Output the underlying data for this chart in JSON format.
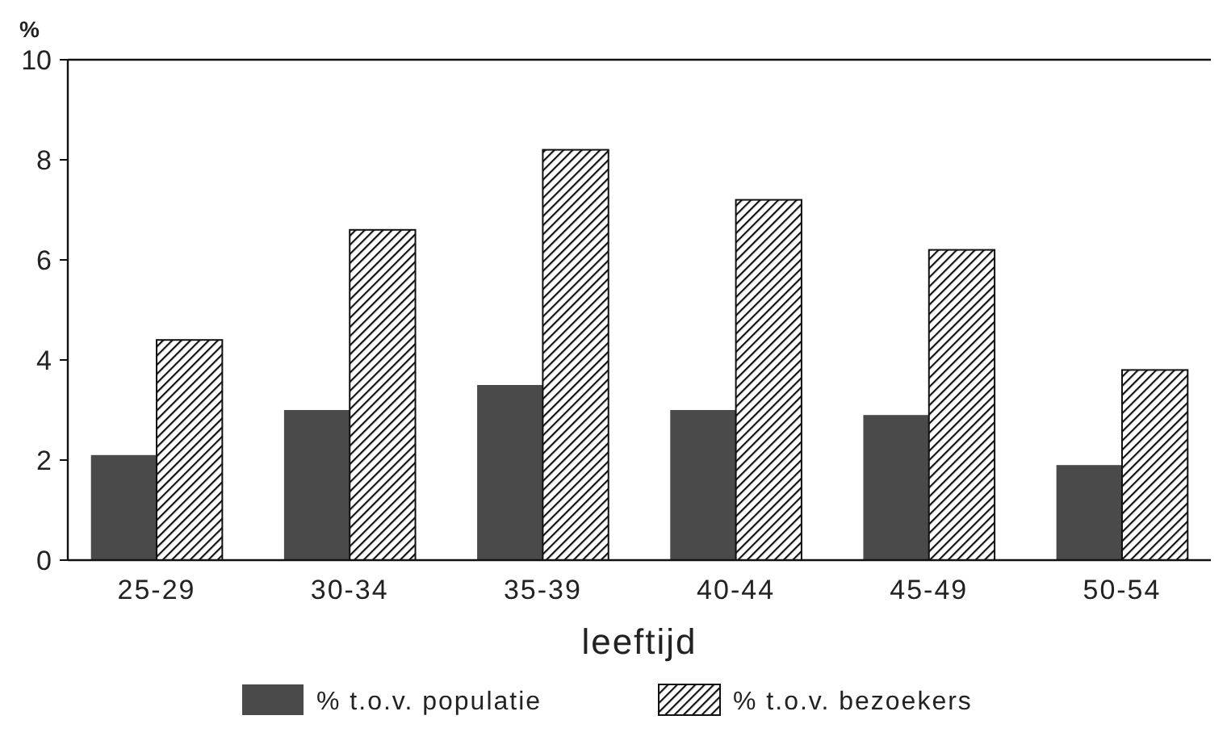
{
  "chart_data": {
    "type": "bar",
    "xlabel": "leeftijd",
    "ylabel": "%",
    "categories": [
      "25-29",
      "30-34",
      "35-39",
      "40-44",
      "45-49",
      "50-54"
    ],
    "series": [
      {
        "name": "% t.o.v. populatie",
        "color": "#4a4a4a",
        "values": [
          2.1,
          3.0,
          3.5,
          3.0,
          2.9,
          1.9
        ]
      },
      {
        "name": "% t.o.v. bezoekers",
        "color": "#111111",
        "values": [
          4.4,
          6.6,
          8.2,
          7.2,
          6.2,
          3.8
        ]
      }
    ],
    "ylim": [
      0,
      10
    ],
    "yticks": [
      0,
      2,
      4,
      6,
      8,
      10
    ],
    "grid": false,
    "legend": "bottom"
  }
}
